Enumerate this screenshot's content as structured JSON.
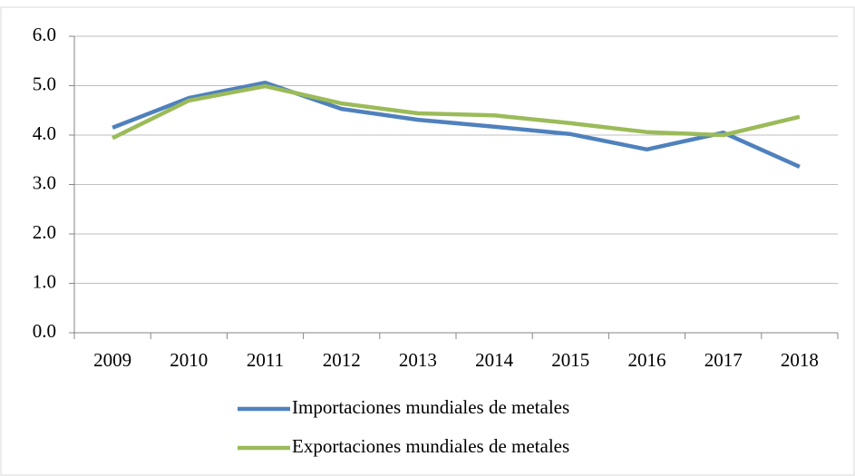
{
  "chart_data": {
    "type": "line",
    "categories": [
      "2009",
      "2010",
      "2011",
      "2012",
      "2013",
      "2014",
      "2015",
      "2016",
      "2017",
      "2018"
    ],
    "series": [
      {
        "name": "Importaciones mundiales de metales",
        "color": "#4f81bd",
        "values": [
          4.15,
          4.75,
          5.06,
          4.53,
          4.31,
          4.17,
          4.02,
          3.71,
          4.05,
          3.36
        ]
      },
      {
        "name": "Exportaciones mundiales de metales",
        "color": "#9bbb59",
        "values": [
          3.94,
          4.7,
          4.99,
          4.64,
          4.44,
          4.4,
          4.24,
          4.06,
          4.0,
          4.37
        ]
      }
    ],
    "ylim": [
      0,
      6
    ],
    "yticks": [
      {
        "value": 0,
        "label": "0.0"
      },
      {
        "value": 1,
        "label": "1.0"
      },
      {
        "value": 2,
        "label": "2.0"
      },
      {
        "value": 3,
        "label": "3.0"
      },
      {
        "value": 4,
        "label": "4.0"
      },
      {
        "value": 5,
        "label": "5.0"
      },
      {
        "value": 6,
        "label": "6.0"
      }
    ],
    "grid": true
  }
}
